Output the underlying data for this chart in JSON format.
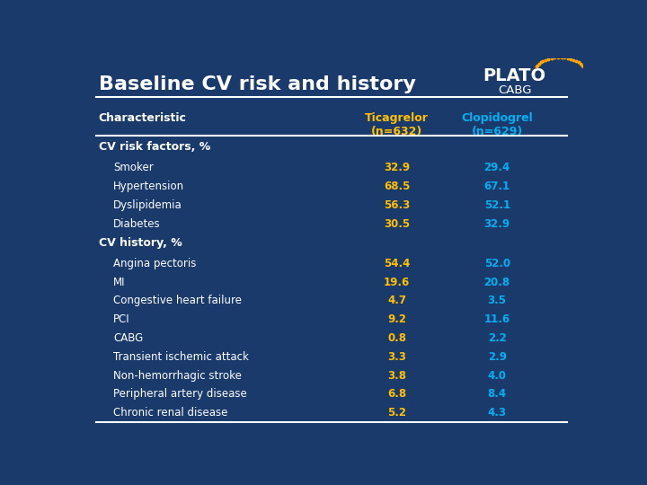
{
  "title": "Baseline CV risk and history",
  "bg_color": "#1a3a6b",
  "title_color": "#ffffff",
  "header_color": "#ffffff",
  "section_color": "#ffffff",
  "row_color": "#ffffff",
  "ticagrelor_color": "#ffc000",
  "clopidogrel_color": "#00b0f0",
  "col1_header": "Ticagrelor\n(n=632)",
  "col2_header": "Clopidogrel\n(n=629)",
  "char_header": "Characteristic",
  "sections": [
    {
      "name": "CV risk factors, %",
      "rows": [
        {
          "label": "Smoker",
          "tica": "32.9",
          "clop": "29.4"
        },
        {
          "label": "Hypertension",
          "tica": "68.5",
          "clop": "67.1"
        },
        {
          "label": "Dyslipidemia",
          "tica": "56.3",
          "clop": "52.1"
        },
        {
          "label": "Diabetes",
          "tica": "30.5",
          "clop": "32.9"
        }
      ]
    },
    {
      "name": "CV history, %",
      "rows": [
        {
          "label": "Angina pectoris",
          "tica": "54.4",
          "clop": "52.0"
        },
        {
          "label": "MI",
          "tica": "19.6",
          "clop": "20.8"
        },
        {
          "label": "Congestive heart failure",
          "tica": "4.7",
          "clop": "3.5"
        },
        {
          "label": "PCI",
          "tica": "9.2",
          "clop": "11.6"
        },
        {
          "label": "CABG",
          "tica": "0.8",
          "clop": "2.2"
        },
        {
          "label": "Transient ischemic attack",
          "tica": "3.3",
          "clop": "2.9"
        },
        {
          "label": "Non-hemorrhagic stroke",
          "tica": "3.8",
          "clop": "4.0"
        },
        {
          "label": "Peripheral artery disease",
          "tica": "6.8",
          "clop": "8.4"
        },
        {
          "label": "Chronic renal disease",
          "tica": "5.2",
          "clop": "4.3"
        }
      ]
    }
  ],
  "line_color": "#ffffff",
  "line_lw": 1.5,
  "dot_color": "#ffa500",
  "plato_color": "#ffffff",
  "cabg_label_color": "#ffffff"
}
